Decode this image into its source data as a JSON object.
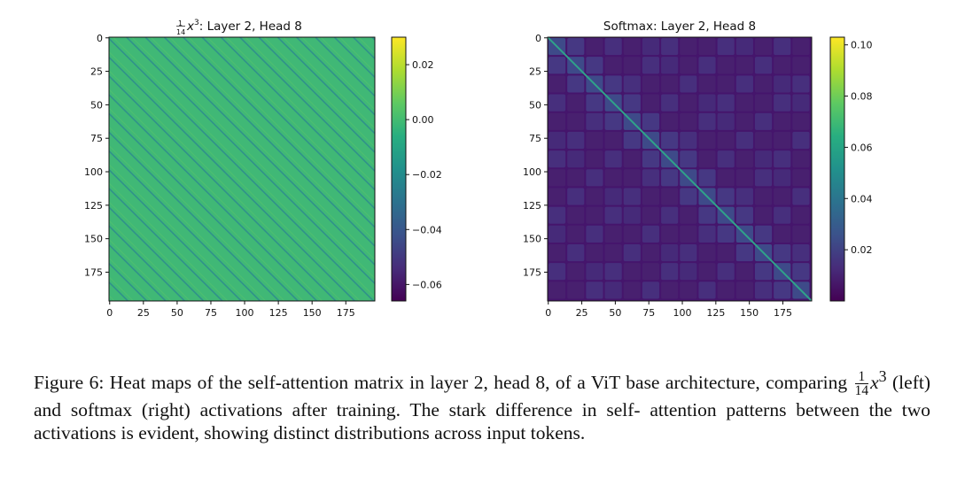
{
  "chart_data": [
    {
      "type": "heatmap",
      "title_prefix_num": "1",
      "title_prefix_den": "14",
      "title_var": "x",
      "title_exp": "3",
      "title": ": Layer 2, Head 8",
      "matrix_size": 197,
      "pattern": "periodic off-diagonal stripes (period ~14 tokens), uniform background",
      "background_value": 0.0,
      "stripe_value": -0.03,
      "x_ticks": [
        "0",
        "25",
        "50",
        "75",
        "100",
        "125",
        "150",
        "175"
      ],
      "y_ticks": [
        "0",
        "25",
        "50",
        "75",
        "100",
        "125",
        "150",
        "175"
      ],
      "colorbar": {
        "min": -0.066,
        "max": 0.03,
        "ticks": [
          "0.02",
          "0.00",
          "−0.02",
          "−0.04",
          "−0.06"
        ],
        "tick_values": [
          0.02,
          0.0,
          -0.02,
          -0.04,
          -0.06
        ]
      },
      "colormap": "viridis"
    },
    {
      "type": "heatmap",
      "title": "Softmax: Layer 2, Head 8",
      "matrix_size": 197,
      "pattern": "strong main diagonal, blocky ~14-token grid, mostly low values",
      "background_value": 0.008,
      "diagonal_value": 0.055,
      "x_ticks": [
        "0",
        "25",
        "50",
        "75",
        "100",
        "125",
        "150",
        "175"
      ],
      "y_ticks": [
        "0",
        "25",
        "50",
        "75",
        "100",
        "125",
        "150",
        "175"
      ],
      "colorbar": {
        "min": 0.0,
        "max": 0.103,
        "ticks": [
          "0.10",
          "0.08",
          "0.06",
          "0.04",
          "0.02"
        ],
        "tick_values": [
          0.1,
          0.08,
          0.06,
          0.04,
          0.02
        ]
      },
      "colormap": "viridis"
    }
  ],
  "caption": {
    "line1": "Figure 6: Heat maps of the self-attention matrix in layer 2, head 8, of a ViT base architecture,",
    "line2_a": "comparing ",
    "frac_num": "1",
    "frac_den": "14",
    "var": "x",
    "exp": "3",
    "line2_b": " (left) and softmax (right) activations after training. The stark difference in self-",
    "line3": "attention patterns between the two activations is evident, showing distinct distributions across input",
    "line4": "tokens."
  }
}
